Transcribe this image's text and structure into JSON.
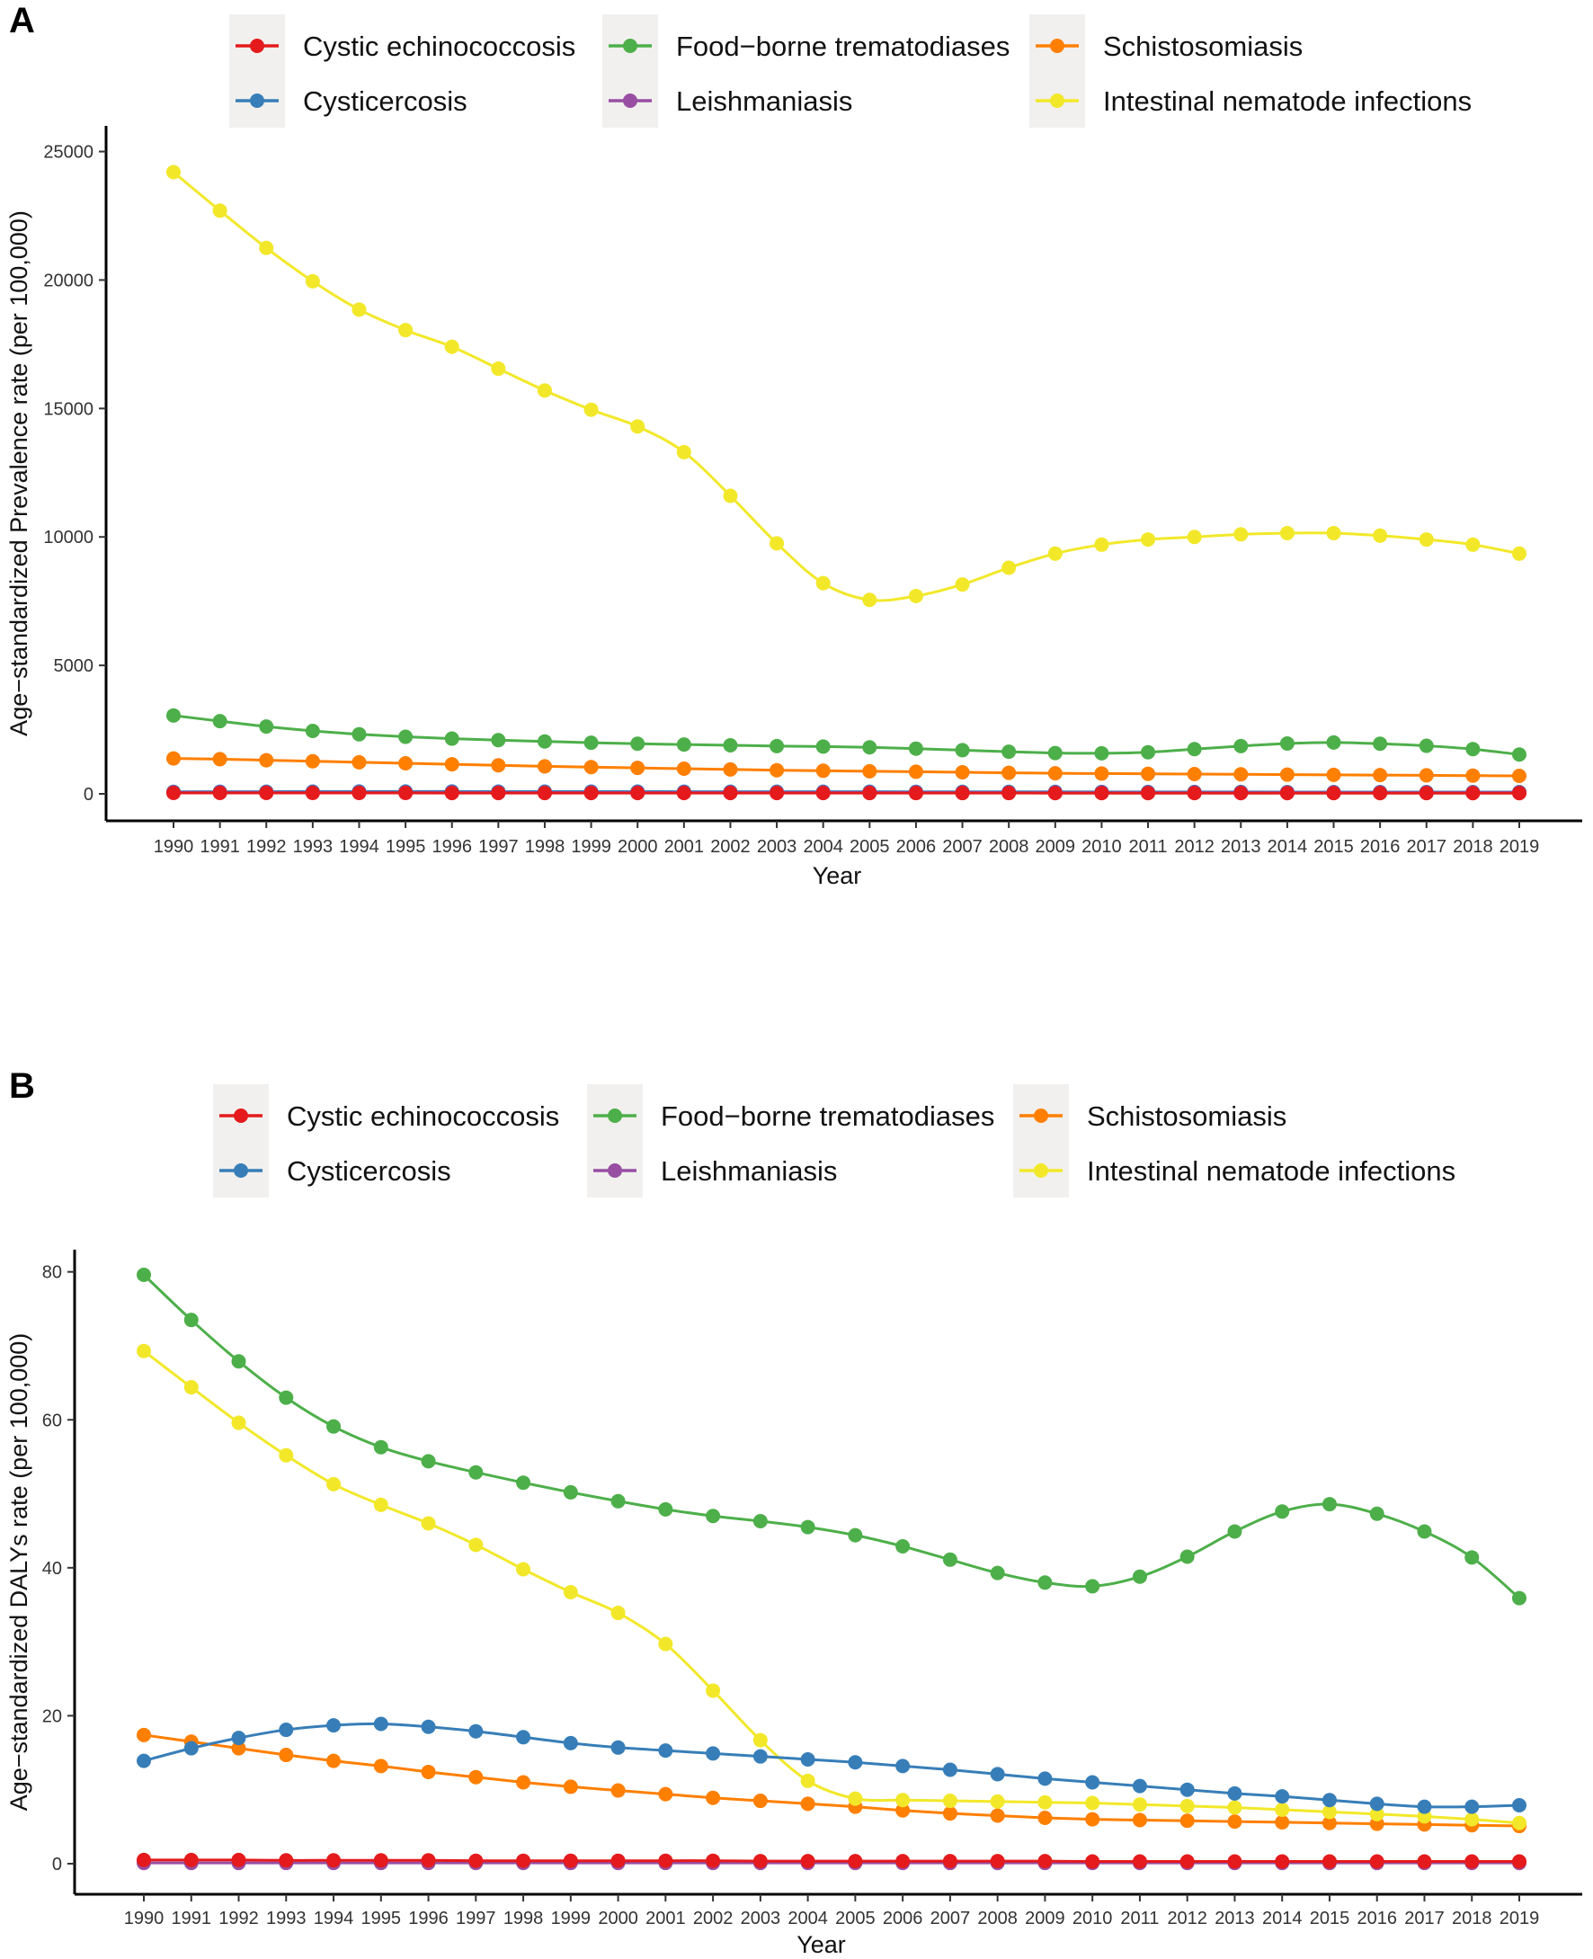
{
  "panels": [
    {
      "letter": "A",
      "legend_items": [
        "Cystic echinococcosis",
        "Food−borne trematodiases",
        "Schistosomiasis",
        "Cysticercosis",
        "Leishmaniasis",
        "Intestinal nematode infections"
      ]
    },
    {
      "letter": "B",
      "legend_items": [
        "Cystic echinococcosis",
        "Food−borne trematodiases",
        "Schistosomiasis",
        "Cysticercosis",
        "Leishmaniasis",
        "Intestinal nematode infections"
      ]
    }
  ],
  "chart_data": [
    {
      "type": "line",
      "title": "",
      "xlabel": "Year",
      "ylabel": "Age−standardized Prevalence rate (per 100,000)",
      "ylim": [
        0,
        26000
      ],
      "yticks": [
        0,
        5000,
        10000,
        15000,
        20000,
        25000
      ],
      "x": [
        1990,
        1991,
        1992,
        1993,
        1994,
        1995,
        1996,
        1997,
        1998,
        1999,
        2000,
        2001,
        2002,
        2003,
        2004,
        2005,
        2006,
        2007,
        2008,
        2009,
        2010,
        2011,
        2012,
        2013,
        2014,
        2015,
        2016,
        2017,
        2018,
        2019
      ],
      "legend": "top",
      "series": [
        {
          "name": "Cystic echinococcosis",
          "color": "#e41a1c",
          "values": [
            35,
            34,
            34,
            33,
            33,
            33,
            32,
            32,
            32,
            31,
            31,
            31,
            30,
            30,
            30,
            29,
            29,
            29,
            29,
            28,
            28,
            28,
            28,
            27,
            27,
            27,
            27,
            27,
            26,
            26
          ]
        },
        {
          "name": "Cysticercosis",
          "color": "#377eb8",
          "values": [
            80,
            82,
            85,
            88,
            90,
            91,
            90,
            89,
            88,
            87,
            86,
            85,
            84,
            83,
            82,
            81,
            80,
            79,
            78,
            77,
            76,
            75,
            74,
            73,
            72,
            71,
            70,
            69,
            69,
            70
          ]
        },
        {
          "name": "Food−borne trematodiases",
          "color": "#4daf4a",
          "values": [
            3050,
            2830,
            2620,
            2450,
            2320,
            2220,
            2150,
            2090,
            2040,
            1990,
            1950,
            1920,
            1890,
            1860,
            1840,
            1810,
            1760,
            1700,
            1640,
            1590,
            1580,
            1620,
            1740,
            1860,
            1960,
            2000,
            1950,
            1870,
            1740,
            1530
          ]
        },
        {
          "name": "Leishmaniasis",
          "color": "#984ea3",
          "values": [
            55,
            55,
            55,
            54,
            54,
            54,
            53,
            53,
            53,
            53,
            52,
            52,
            52,
            52,
            51,
            51,
            51,
            51,
            50,
            50,
            50,
            50,
            50,
            49,
            49,
            49,
            49,
            48,
            48,
            48
          ]
        },
        {
          "name": "Schistosomiasis",
          "color": "#ff7f00",
          "values": [
            1380,
            1350,
            1310,
            1270,
            1230,
            1190,
            1150,
            1110,
            1070,
            1040,
            1010,
            980,
            950,
            920,
            900,
            880,
            860,
            840,
            820,
            800,
            790,
            780,
            770,
            760,
            750,
            740,
            730,
            720,
            710,
            700
          ]
        },
        {
          "name": "Intestinal nematode infections",
          "color": "#f2e829",
          "values": [
            24200,
            22700,
            21250,
            19950,
            18850,
            18050,
            17400,
            16550,
            15700,
            14950,
            14300,
            13300,
            11600,
            9750,
            8200,
            7550,
            7700,
            8150,
            8800,
            9350,
            9700,
            9900,
            10000,
            10100,
            10150,
            10150,
            10050,
            9900,
            9700,
            9350
          ]
        }
      ]
    },
    {
      "type": "line",
      "title": "",
      "xlabel": "Year",
      "ylabel": "Age−standardized DALYs rate (per 100,000)",
      "ylim": [
        0,
        83
      ],
      "yticks": [
        0,
        20,
        40,
        60,
        80
      ],
      "x": [
        1990,
        1991,
        1992,
        1993,
        1994,
        1995,
        1996,
        1997,
        1998,
        1999,
        2000,
        2001,
        2002,
        2003,
        2004,
        2005,
        2006,
        2007,
        2008,
        2009,
        2010,
        2011,
        2012,
        2013,
        2014,
        2015,
        2016,
        2017,
        2018,
        2019
      ],
      "legend": "top",
      "series": [
        {
          "name": "Cystic echinococcosis",
          "color": "#e41a1c",
          "values": [
            0.5,
            0.5,
            0.5,
            0.45,
            0.45,
            0.45,
            0.45,
            0.4,
            0.4,
            0.4,
            0.4,
            0.4,
            0.4,
            0.35,
            0.35,
            0.35,
            0.35,
            0.35,
            0.35,
            0.35,
            0.3,
            0.3,
            0.3,
            0.3,
            0.3,
            0.3,
            0.3,
            0.3,
            0.3,
            0.3
          ]
        },
        {
          "name": "Cysticercosis",
          "color": "#377eb8",
          "values": [
            13.9,
            15.6,
            17.0,
            18.1,
            18.7,
            18.9,
            18.5,
            17.9,
            17.1,
            16.3,
            15.7,
            15.3,
            14.9,
            14.5,
            14.1,
            13.7,
            13.2,
            12.7,
            12.1,
            11.5,
            11.0,
            10.5,
            10.0,
            9.5,
            9.1,
            8.6,
            8.1,
            7.7,
            7.7,
            7.9
          ]
        },
        {
          "name": "Food−borne trematodiases",
          "color": "#4daf4a",
          "values": [
            79.6,
            73.5,
            67.9,
            63.0,
            59.1,
            56.3,
            54.4,
            52.9,
            51.5,
            50.2,
            49.0,
            47.9,
            47.0,
            46.3,
            45.5,
            44.4,
            42.9,
            41.1,
            39.3,
            38.0,
            37.5,
            38.8,
            41.5,
            44.9,
            47.6,
            48.6,
            47.3,
            44.9,
            41.4,
            35.9
          ]
        },
        {
          "name": "Leishmaniasis",
          "color": "#984ea3",
          "values": [
            0.1,
            0.1,
            0.1,
            0.1,
            0.1,
            0.1,
            0.1,
            0.1,
            0.1,
            0.1,
            0.1,
            0.1,
            0.1,
            0.1,
            0.1,
            0.1,
            0.1,
            0.1,
            0.1,
            0.1,
            0.1,
            0.1,
            0.1,
            0.1,
            0.1,
            0.1,
            0.1,
            0.1,
            0.1,
            0.1
          ]
        },
        {
          "name": "Schistosomiasis",
          "color": "#ff7f00",
          "values": [
            17.4,
            16.5,
            15.6,
            14.7,
            13.9,
            13.2,
            12.4,
            11.7,
            11.0,
            10.4,
            9.9,
            9.4,
            8.9,
            8.5,
            8.1,
            7.7,
            7.2,
            6.8,
            6.5,
            6.2,
            6.0,
            5.9,
            5.8,
            5.7,
            5.6,
            5.5,
            5.4,
            5.3,
            5.2,
            5.1
          ]
        },
        {
          "name": "Intestinal nematode infections",
          "color": "#f2e829",
          "values": [
            69.3,
            64.4,
            59.6,
            55.2,
            51.3,
            48.5,
            46.0,
            43.1,
            39.8,
            36.7,
            33.9,
            29.7,
            23.4,
            16.7,
            11.2,
            8.8,
            8.6,
            8.5,
            8.4,
            8.3,
            8.2,
            8.0,
            7.8,
            7.6,
            7.3,
            7.0,
            6.7,
            6.4,
            6.0,
            5.5
          ]
        }
      ]
    }
  ]
}
